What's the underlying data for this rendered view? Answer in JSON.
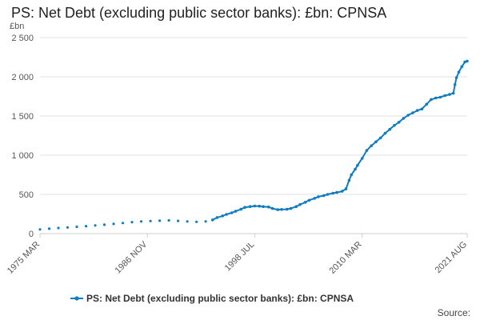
{
  "chart_data": {
    "type": "line",
    "title": "PS: Net Debt (excluding public sector banks): £bn: CPNSA",
    "ylabel": "£bn",
    "xlabel": "",
    "ylim": [
      0,
      2500
    ],
    "xlim": [
      "1975 MAR",
      "2021 AUG"
    ],
    "y_ticks": [
      "0",
      "500",
      "1 000",
      "1 500",
      "2 000",
      "2 500"
    ],
    "x_ticks": [
      "1975 MAR",
      "1986 NOV",
      "1998 JUL",
      "2010 MAR",
      "2021 AUG"
    ],
    "grid": true,
    "legend_position": "bottom",
    "source_label": "Source:",
    "color": "#0f7dbf",
    "series": [
      {
        "name": "PS: Net Debt (excluding public sector banks): £bn: CPNSA",
        "points": [
          [
            "1975-03",
            53
          ],
          [
            "1976-03",
            62
          ],
          [
            "1977-03",
            71
          ],
          [
            "1978-03",
            79
          ],
          [
            "1979-03",
            87
          ],
          [
            "1980-03",
            95
          ],
          [
            "1981-03",
            104
          ],
          [
            "1982-03",
            113
          ],
          [
            "1983-03",
            123
          ],
          [
            "1984-03",
            135
          ],
          [
            "1985-03",
            146
          ],
          [
            "1986-03",
            155
          ],
          [
            "1987-03",
            160
          ],
          [
            "1988-03",
            164
          ],
          [
            "1989-03",
            168
          ],
          [
            "1990-03",
            162
          ],
          [
            "1991-03",
            155
          ],
          [
            "1992-03",
            150
          ],
          [
            "1993-03",
            155
          ],
          [
            "1993-12",
            175
          ],
          [
            "1994-06",
            205
          ],
          [
            "1995-01",
            225
          ],
          [
            "1995-06",
            245
          ],
          [
            "1996-01",
            265
          ],
          [
            "1996-06",
            285
          ],
          [
            "1997-01",
            310
          ],
          [
            "1997-06",
            335
          ],
          [
            "1998-01",
            345
          ],
          [
            "1998-07",
            352
          ],
          [
            "1999-01",
            350
          ],
          [
            "1999-06",
            345
          ],
          [
            "2000-01",
            340
          ],
          [
            "2000-06",
            320
          ],
          [
            "2001-01",
            305
          ],
          [
            "2001-06",
            308
          ],
          [
            "2002-01",
            310
          ],
          [
            "2002-06",
            320
          ],
          [
            "2003-01",
            345
          ],
          [
            "2003-06",
            370
          ],
          [
            "2004-01",
            400
          ],
          [
            "2004-06",
            425
          ],
          [
            "2005-01",
            450
          ],
          [
            "2005-06",
            470
          ],
          [
            "2006-01",
            485
          ],
          [
            "2006-06",
            500
          ],
          [
            "2007-01",
            515
          ],
          [
            "2007-06",
            525
          ],
          [
            "2008-01",
            540
          ],
          [
            "2008-06",
            570
          ],
          [
            "2008-10",
            680
          ],
          [
            "2009-01",
            750
          ],
          [
            "2009-06",
            820
          ],
          [
            "2009-09",
            870
          ],
          [
            "2010-03",
            960
          ],
          [
            "2010-09",
            1060
          ],
          [
            "2011-03",
            1120
          ],
          [
            "2011-09",
            1170
          ],
          [
            "2012-03",
            1220
          ],
          [
            "2012-09",
            1280
          ],
          [
            "2013-03",
            1330
          ],
          [
            "2013-09",
            1380
          ],
          [
            "2014-03",
            1420
          ],
          [
            "2014-09",
            1470
          ],
          [
            "2015-03",
            1510
          ],
          [
            "2015-09",
            1540
          ],
          [
            "2016-03",
            1570
          ],
          [
            "2016-09",
            1590
          ],
          [
            "2017-03",
            1650
          ],
          [
            "2017-09",
            1710
          ],
          [
            "2018-03",
            1730
          ],
          [
            "2018-09",
            1740
          ],
          [
            "2019-03",
            1760
          ],
          [
            "2019-09",
            1775
          ],
          [
            "2020-02",
            1790
          ],
          [
            "2020-04",
            1900
          ],
          [
            "2020-06",
            1990
          ],
          [
            "2020-09",
            2060
          ],
          [
            "2021-01",
            2130
          ],
          [
            "2021-05",
            2190
          ],
          [
            "2021-08",
            2200
          ]
        ]
      }
    ]
  }
}
